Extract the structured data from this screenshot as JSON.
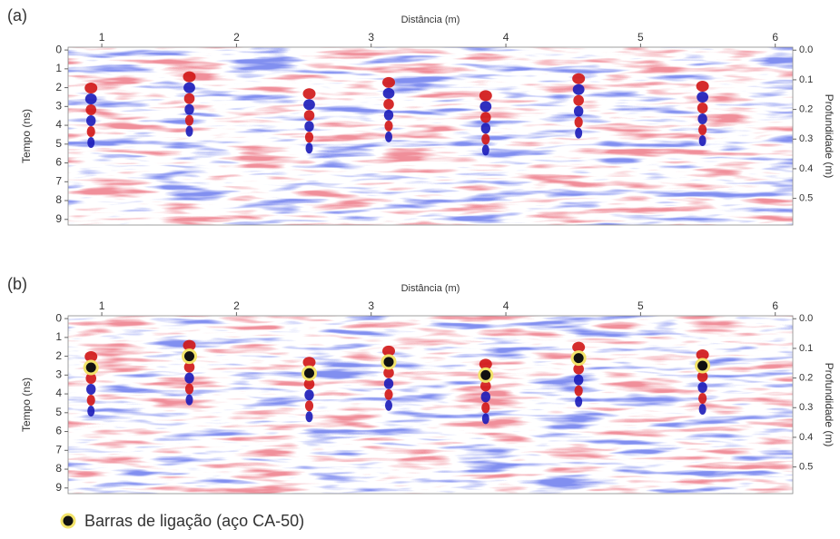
{
  "chart_data": [
    {
      "type": "radargram",
      "title": "(a)",
      "xlabel": "Distância (m)",
      "ylabel": "Tempo (ns)",
      "y2label": "Profundidade (m)",
      "xlim": [
        0.75,
        6.13
      ],
      "xticks": [
        1,
        2,
        3,
        4,
        5,
        6
      ],
      "ylim": [
        -0.15,
        9.3
      ],
      "yticks": [
        0,
        1,
        2,
        3,
        4,
        5,
        6,
        7,
        8,
        9
      ],
      "y2lim": [
        -0.01,
        0.59
      ],
      "y2ticks": [
        {
          "value": 0,
          "label": "0.0"
        },
        0.1,
        0.2,
        0.3,
        0.4,
        0.5
      ]
    },
    {
      "type": "scatter",
      "title": "(b)",
      "xlabel": "Distância (m)",
      "ylabel": "Tempo (ns)",
      "y2label": "Profundidade (m)",
      "xlim": [
        0.75,
        6.13
      ],
      "xticks": [
        1,
        2,
        3,
        4,
        5,
        6
      ],
      "ylim": [
        -0.15,
        9.3
      ],
      "yticks": [
        0,
        1,
        2,
        3,
        4,
        5,
        6,
        7,
        8,
        9
      ],
      "y2lim": [
        -0.01,
        0.59
      ],
      "y2ticks": [
        {
          "value": 0,
          "label": "0.0"
        },
        0.1,
        0.2,
        0.3,
        0.4,
        0.5
      ],
      "series": [
        {
          "name": "Barras de ligação (aço CA-50)",
          "color": "#111111",
          "edge_color": "#f2e36a",
          "x": [
            0.92,
            1.65,
            2.54,
            3.13,
            3.85,
            4.54,
            5.46
          ],
          "values": [
            2.6,
            2.0,
            2.9,
            2.3,
            3.0,
            2.1,
            2.5
          ]
        }
      ]
    }
  ]
}
